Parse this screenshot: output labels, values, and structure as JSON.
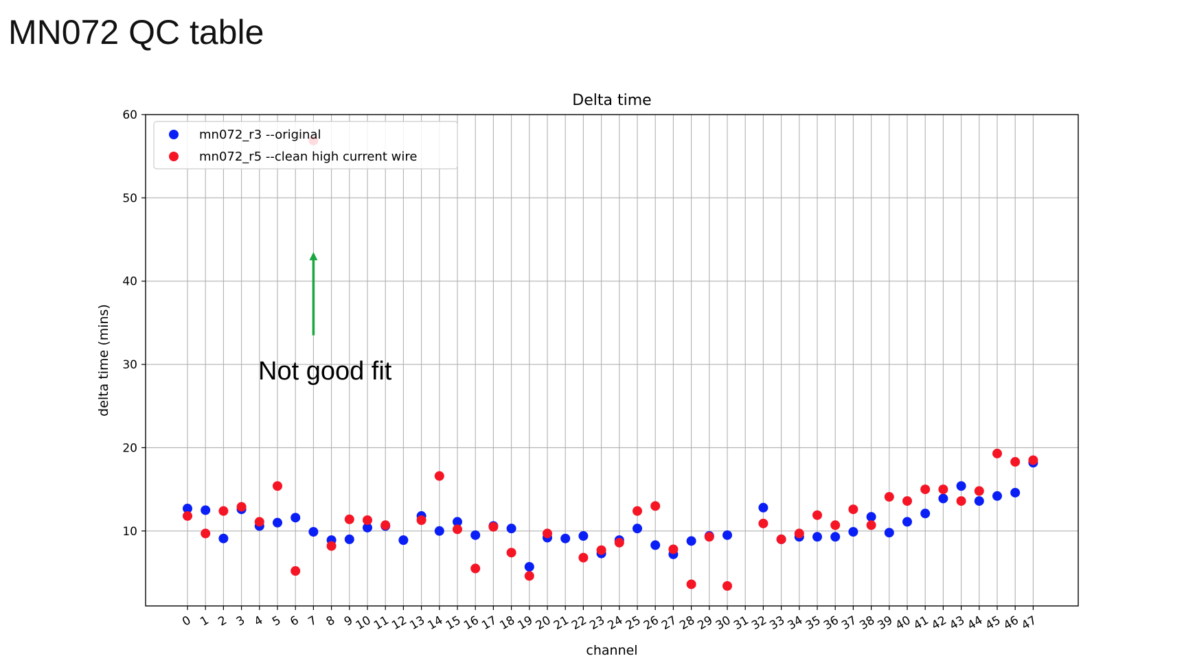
{
  "slide": {
    "title": "MN072 QC table"
  },
  "chart_data": {
    "type": "scatter",
    "title": "Delta time",
    "xlabel": "channel",
    "ylabel": "delta time (mins)",
    "ylim": [
      1,
      60
    ],
    "yticks": [
      10,
      20,
      30,
      40,
      50,
      60
    ],
    "grid": true,
    "legend_position": "top-left",
    "x": [
      0,
      1,
      2,
      3,
      4,
      5,
      6,
      7,
      8,
      9,
      10,
      11,
      12,
      13,
      14,
      15,
      16,
      17,
      18,
      19,
      20,
      21,
      22,
      23,
      24,
      25,
      26,
      27,
      28,
      29,
      30,
      31,
      32,
      33,
      34,
      35,
      36,
      37,
      38,
      39,
      40,
      41,
      42,
      43,
      44,
      45,
      46,
      47
    ],
    "x_tick_labels": [
      "0",
      "1",
      "2",
      "3",
      "4",
      "5",
      "6",
      "7",
      "8",
      "9",
      "10",
      "11",
      "12",
      "13",
      "14",
      "15",
      "16",
      "17",
      "18",
      "19",
      "20",
      "21",
      "22",
      "23",
      "24",
      "25",
      "26",
      "27",
      "28",
      "29",
      "30",
      "31",
      "32",
      "33",
      "34",
      "35",
      "36",
      "37",
      "38",
      "39",
      "40",
      "41",
      "42",
      "43",
      "44",
      "45",
      "46",
      "47"
    ],
    "series": [
      {
        "name": "mn072_r3 --original",
        "color": "#0a1ff5",
        "points": [
          [
            0,
            12.7
          ],
          [
            1,
            12.5
          ],
          [
            2,
            9.1
          ],
          [
            3,
            12.6
          ],
          [
            4,
            10.6
          ],
          [
            5,
            11.0
          ],
          [
            6,
            11.6
          ],
          [
            7,
            9.9
          ],
          [
            8,
            8.9
          ],
          [
            9,
            9.0
          ],
          [
            10,
            10.4
          ],
          [
            11,
            10.6
          ],
          [
            12,
            8.9
          ],
          [
            13,
            11.8
          ],
          [
            14,
            10.0
          ],
          [
            15,
            11.1
          ],
          [
            16,
            9.5
          ],
          [
            17,
            10.6
          ],
          [
            18,
            10.3
          ],
          [
            19,
            5.7
          ],
          [
            20,
            9.2
          ],
          [
            21,
            9.1
          ],
          [
            22,
            9.4
          ],
          [
            23,
            7.3
          ],
          [
            24,
            8.9
          ],
          [
            25,
            10.3
          ],
          [
            26,
            8.3
          ],
          [
            27,
            7.2
          ],
          [
            28,
            8.8
          ],
          [
            29,
            9.4
          ],
          [
            30,
            9.5
          ],
          [
            32,
            12.8
          ],
          [
            33,
            9.0
          ],
          [
            34,
            9.3
          ],
          [
            35,
            9.3
          ],
          [
            36,
            9.3
          ],
          [
            37,
            9.9
          ],
          [
            38,
            11.7
          ],
          [
            39,
            9.8
          ],
          [
            40,
            11.1
          ],
          [
            41,
            12.1
          ],
          [
            42,
            13.9
          ],
          [
            43,
            15.4
          ],
          [
            44,
            13.6
          ],
          [
            45,
            14.2
          ],
          [
            46,
            14.6
          ],
          [
            47,
            18.2
          ]
        ]
      },
      {
        "name": "mn072_r5 --clean high current wire",
        "color": "#f51525",
        "points": [
          [
            0,
            11.8
          ],
          [
            1,
            9.7
          ],
          [
            2,
            12.4
          ],
          [
            3,
            12.9
          ],
          [
            4,
            11.1
          ],
          [
            5,
            15.4
          ],
          [
            6,
            5.2
          ],
          [
            7,
            56.9
          ],
          [
            8,
            8.2
          ],
          [
            9,
            11.4
          ],
          [
            10,
            11.3
          ],
          [
            11,
            10.7
          ],
          [
            12,
            null
          ],
          [
            13,
            11.3
          ],
          [
            14,
            16.6
          ],
          [
            15,
            10.2
          ],
          [
            16,
            5.5
          ],
          [
            17,
            10.5
          ],
          [
            18,
            7.4
          ],
          [
            19,
            4.6
          ],
          [
            20,
            9.7
          ],
          [
            21,
            null
          ],
          [
            22,
            6.8
          ],
          [
            23,
            7.7
          ],
          [
            24,
            8.6
          ],
          [
            25,
            12.4
          ],
          [
            26,
            13.0
          ],
          [
            27,
            7.8
          ],
          [
            28,
            3.6
          ],
          [
            29,
            9.3
          ],
          [
            30,
            3.4
          ],
          [
            32,
            10.9
          ],
          [
            33,
            9.0
          ],
          [
            34,
            9.7
          ],
          [
            35,
            11.9
          ],
          [
            36,
            10.7
          ],
          [
            37,
            12.6
          ],
          [
            38,
            10.7
          ],
          [
            39,
            14.1
          ],
          [
            40,
            13.6
          ],
          [
            41,
            15.0
          ],
          [
            42,
            15.0
          ],
          [
            43,
            13.6
          ],
          [
            44,
            14.8
          ],
          [
            45,
            19.3
          ],
          [
            46,
            18.3
          ],
          [
            47,
            18.5
          ]
        ]
      }
    ],
    "annotations": [
      {
        "text": "Not good fit",
        "arrow_color": "#1aa640",
        "arrow_x_channel": 7,
        "arrow_from_y": 33.5,
        "arrow_to_y": 43.5
      }
    ]
  }
}
